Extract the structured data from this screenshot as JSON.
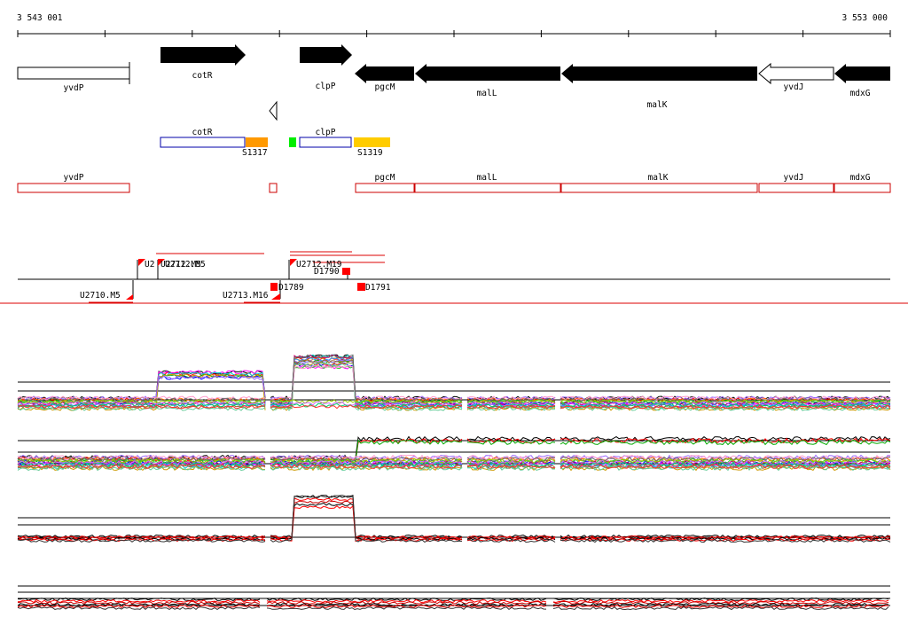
{
  "coordinates": {
    "start": "3 543 001",
    "end": "3 553 000"
  },
  "genes": [
    {
      "name": "yvdP",
      "strand": "-",
      "fill": "white"
    },
    {
      "name": "cotR",
      "strand": "+",
      "fill": "black"
    },
    {
      "name": "clpP",
      "strand": "+",
      "fill": "black"
    },
    {
      "name": "pgcM",
      "strand": "-",
      "fill": "black"
    },
    {
      "name": "malL",
      "strand": "-",
      "fill": "black"
    },
    {
      "name": "malK",
      "strand": "-",
      "fill": "black"
    },
    {
      "name": "yvdJ",
      "strand": "-",
      "fill": "white"
    },
    {
      "name": "mdxG",
      "strand": "-",
      "fill": "black"
    }
  ],
  "transcripts": {
    "cotR": {
      "label": "cotR",
      "region": "S1317"
    },
    "clpP": {
      "label": "clpP",
      "region": "S1319"
    }
  },
  "track_genes": [
    "yvdP",
    "pgcM",
    "malL",
    "malK",
    "yvdJ",
    "mdxG"
  ],
  "features_upper": [
    {
      "label": "U2"
    },
    {
      "label": "U2712.M5"
    },
    {
      "label": "U2712.M5"
    },
    {
      "label": "U2712.M19"
    },
    {
      "label": "D1790"
    }
  ],
  "features_lower": [
    {
      "label": "U2710.M5"
    },
    {
      "label": "U2713.M16"
    },
    {
      "label": "D1789"
    },
    {
      "label": "D1791"
    }
  ],
  "colors": {
    "gene_black": "#000000",
    "transcript_outline": "#0000aa",
    "gene_box": "#cc0000",
    "region_orange": "#ff9900",
    "region_yellow": "#ffcc00",
    "region_green": "#00ee00",
    "marker_red": "#ff0000"
  },
  "expression_panels": [
    {
      "name": "all-conditions-forward"
    },
    {
      "name": "all-conditions-reverse"
    },
    {
      "name": "selected-forward"
    },
    {
      "name": "selected-reverse"
    }
  ]
}
